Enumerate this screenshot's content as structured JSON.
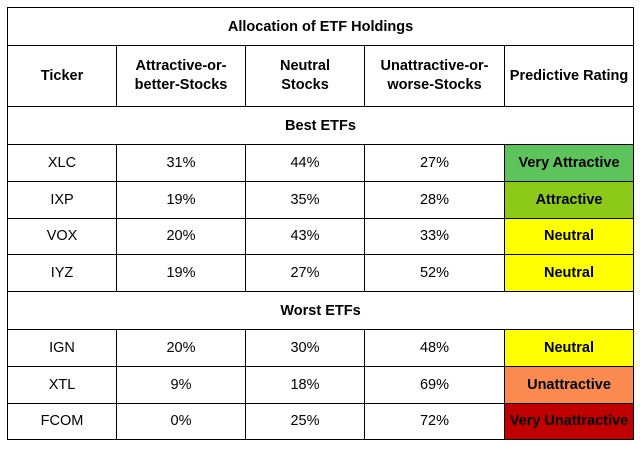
{
  "table": {
    "title": "Allocation of ETF Holdings",
    "headers": [
      [
        "Ticker"
      ],
      [
        "Attractive-or-",
        "better-Stocks"
      ],
      [
        "Neutral",
        "Stocks"
      ],
      [
        "Unattractive-or-",
        "worse-Stocks"
      ],
      [
        "Predictive Rating"
      ]
    ],
    "sections": [
      {
        "label": "Best ETFs",
        "rows": [
          {
            "ticker": "XLC",
            "attractive": "31%",
            "neutral": "44%",
            "unattractive": "27%",
            "rating": "Very Attractive",
            "rating_color": "#5cc45a"
          },
          {
            "ticker": "IXP",
            "attractive": "19%",
            "neutral": "35%",
            "unattractive": "28%",
            "rating": "Attractive",
            "rating_color": "#8cc919"
          },
          {
            "ticker": "VOX",
            "attractive": "20%",
            "neutral": "43%",
            "unattractive": "33%",
            "rating": "Neutral",
            "rating_color": "#ffff00"
          },
          {
            "ticker": "IYZ",
            "attractive": "19%",
            "neutral": "27%",
            "unattractive": "52%",
            "rating": "Neutral",
            "rating_color": "#ffff00"
          }
        ]
      },
      {
        "label": "Worst ETFs",
        "rows": [
          {
            "ticker": "IGN",
            "attractive": "20%",
            "neutral": "30%",
            "unattractive": "48%",
            "rating": "Neutral",
            "rating_color": "#ffff00"
          },
          {
            "ticker": "XTL",
            "attractive": "9%",
            "neutral": "18%",
            "unattractive": "69%",
            "rating": "Unattractive",
            "rating_color": "#fa8a50"
          },
          {
            "ticker": "FCOM",
            "attractive": "0%",
            "neutral": "25%",
            "unattractive": "72%",
            "rating": "Very Unattractive",
            "rating_color": "#c00000"
          }
        ]
      }
    ]
  }
}
